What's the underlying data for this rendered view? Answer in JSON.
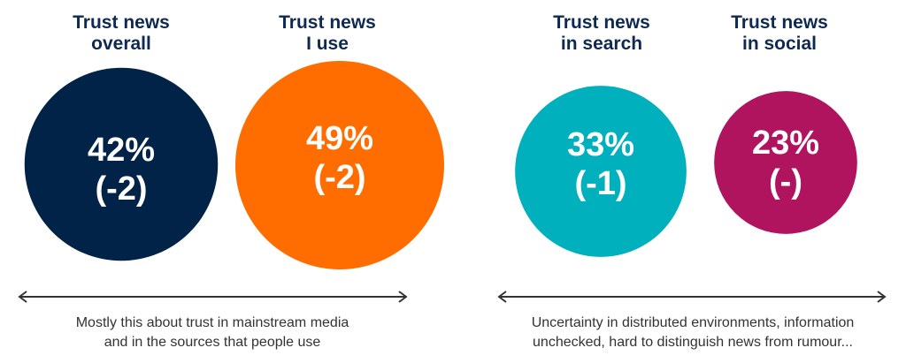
{
  "chart_data": {
    "type": "bubble",
    "title": "",
    "bubbles": [
      {
        "id": "overall",
        "label_lines": [
          "Trust news",
          "overall"
        ],
        "value": 42,
        "value_label": "42%",
        "change_label": "(-2)",
        "change": -2,
        "color": "#012348"
      },
      {
        "id": "i-use",
        "label_lines": [
          "Trust news",
          "I use"
        ],
        "value": 49,
        "value_label": "49%",
        "change_label": "(-2)",
        "change": -2,
        "color": "#ff6d00"
      },
      {
        "id": "search",
        "label_lines": [
          "Trust news",
          "in search"
        ],
        "value": 33,
        "value_label": "33%",
        "change_label": "(-1)",
        "change": -1,
        "color": "#00b0bd"
      },
      {
        "id": "social",
        "label_lines": [
          "Trust news",
          "in social"
        ],
        "value": 23,
        "value_label": "23%",
        "change_label": "(-)",
        "change": null,
        "color": "#b0145e"
      }
    ],
    "groups": [
      {
        "caption_lines": [
          "Mostly this about trust in mainstream media",
          "and in the sources that people use"
        ]
      },
      {
        "caption_lines": [
          "Uncertainty in distributed environments, information",
          "unchecked, hard to distinguish news from rumour..."
        ]
      }
    ]
  }
}
